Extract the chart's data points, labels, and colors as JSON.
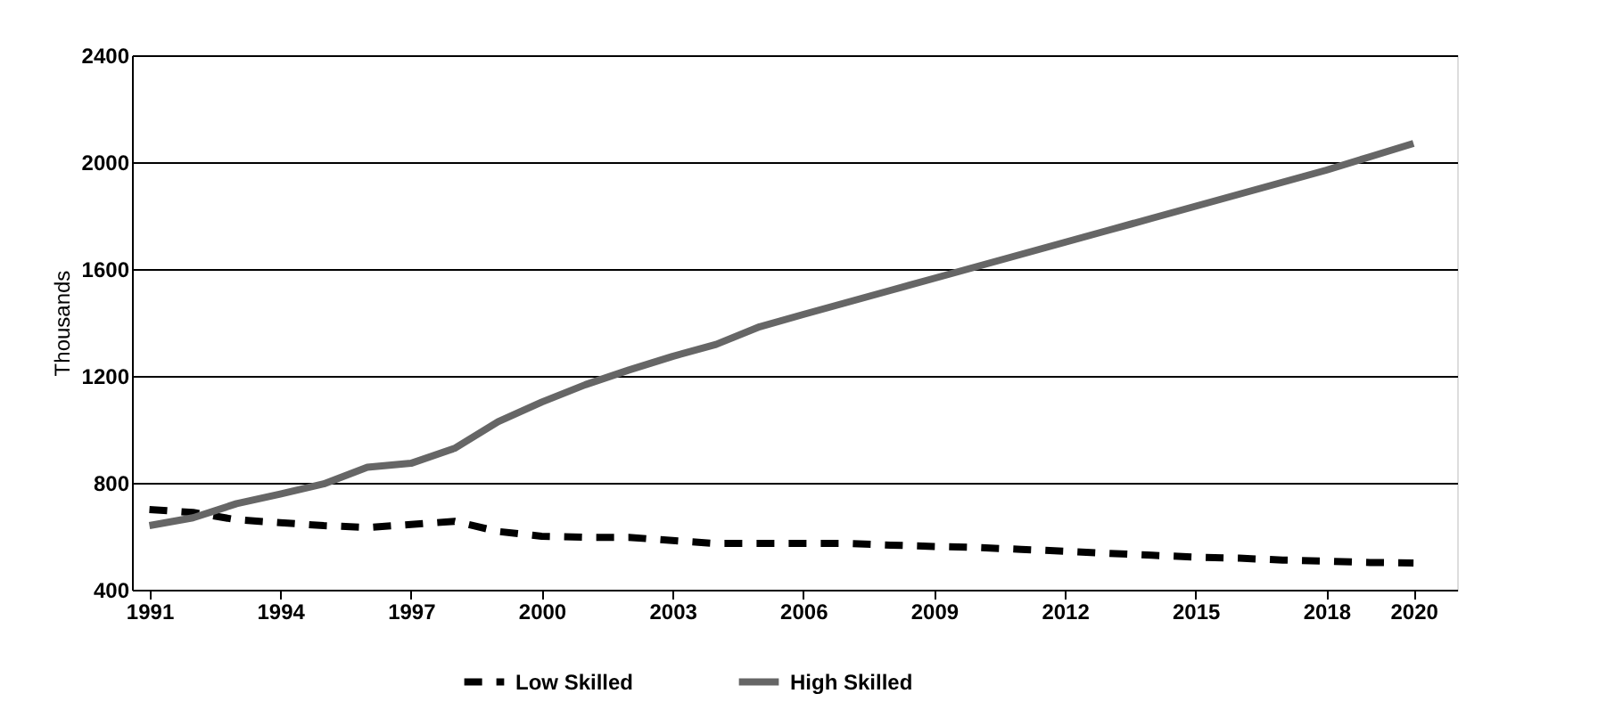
{
  "chart_data": {
    "type": "line",
    "ylabel": "Thousands",
    "x": [
      1991,
      1992,
      1993,
      1994,
      1995,
      1996,
      1997,
      1998,
      1999,
      2000,
      2001,
      2002,
      2003,
      2004,
      2005,
      2006,
      2007,
      2008,
      2009,
      2010,
      2011,
      2012,
      2013,
      2014,
      2015,
      2016,
      2017,
      2018,
      2019,
      2020
    ],
    "series": [
      {
        "name": "Low Skilled",
        "color": "#000000",
        "line_style": "dashed",
        "values": [
          700,
          689,
          662,
          651,
          640,
          633,
          644,
          656,
          618,
          600,
          596,
          596,
          584,
          573,
          573,
          573,
          573,
          567,
          562,
          558,
          551,
          544,
          536,
          529,
          522,
          518,
          511,
          507,
          502,
          500
        ]
      },
      {
        "name": "High Skilled",
        "color": "#666666",
        "line_style": "solid",
        "values": [
          640,
          669,
          722,
          758,
          796,
          858,
          873,
          929,
          1029,
          1102,
          1167,
          1222,
          1273,
          1318,
          1384,
          1430,
          1475,
          1520,
          1565,
          1610,
          1655,
          1700,
          1745,
          1790,
          1835,
          1880,
          1925,
          1970,
          2020,
          2070
        ]
      }
    ],
    "xlim": [
      1990.6,
      2021
    ],
    "xticks": [
      1991,
      1994,
      1997,
      2000,
      2003,
      2006,
      2009,
      2012,
      2015,
      2018,
      2020
    ],
    "ylim": [
      400,
      2400
    ],
    "yticks": [
      400,
      800,
      1200,
      1600,
      2000,
      2400
    ],
    "grid": "y",
    "legend": "bottom",
    "marker": "none"
  }
}
